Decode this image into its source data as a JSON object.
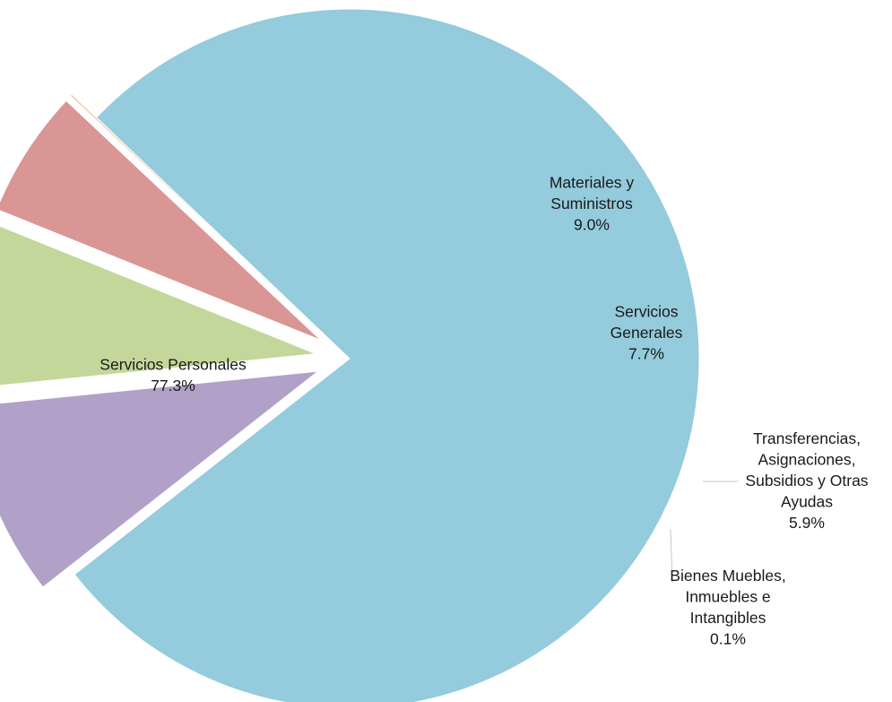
{
  "chart_data": {
    "type": "pie",
    "title": "",
    "slices": [
      {
        "name_lines": [
          "Servicios  Personales"
        ],
        "value": 77.3,
        "value_label": "77.3%",
        "color": "#94cbdd"
      },
      {
        "name_lines": [
          "Materiales  y",
          "Suministros"
        ],
        "value": 9.0,
        "value_label": "9.0%",
        "color": "#b1a0c7"
      },
      {
        "name_lines": [
          "Servicios",
          "Generales"
        ],
        "value": 7.7,
        "value_label": "7.7%",
        "color": "#c4d79b"
      },
      {
        "name_lines": [
          "Transferencias,",
          "Asignaciones,",
          "Subsidios  y Otras",
          "Ayudas"
        ],
        "value": 5.9,
        "value_label": "5.9%",
        "color": "#da9694"
      },
      {
        "name_lines": [
          "Bienes Muebles,",
          "Inmuebles  e",
          "Intangibles"
        ],
        "value": 0.1,
        "value_label": "0.1%",
        "color": "#f2c9a8"
      }
    ],
    "exploded": true,
    "legend": "none",
    "labels": "category name and percentage on or next to each slice"
  }
}
